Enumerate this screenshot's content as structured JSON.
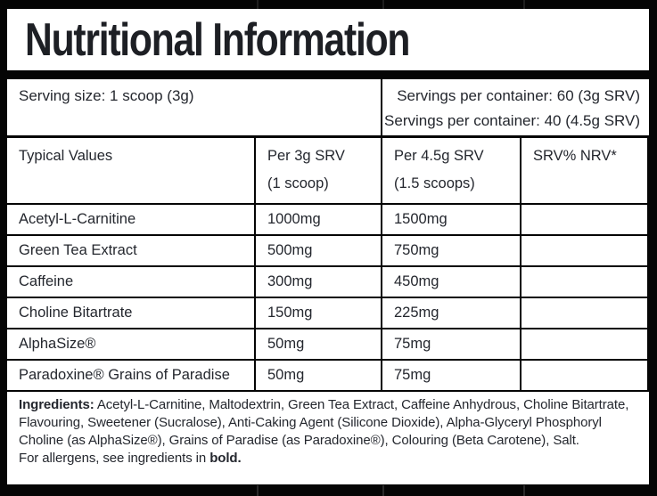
{
  "title": "Nutritional Information",
  "serving": {
    "size": "Serving size: 1 scoop (3g)",
    "per_container_1": "Servings per container: 60 (3g SRV)",
    "per_container_2": "Servings per container: 40 (4.5g SRV)"
  },
  "table": {
    "header": {
      "col1": "Typical Values",
      "col2_line1": "Per 3g SRV",
      "col2_line2": "(1 scoop)",
      "col3_line1": "Per 4.5g SRV",
      "col3_line2": "(1.5 scoops)",
      "col4": "SRV% NRV*"
    },
    "rows": [
      {
        "name": "Acetyl-L-Carnitine",
        "per_3g": "1000mg",
        "per_4_5g": "1500mg",
        "srv_nrv": ""
      },
      {
        "name": "Green Tea Extract",
        "per_3g": "500mg",
        "per_4_5g": "750mg",
        "srv_nrv": ""
      },
      {
        "name": "Caffeine",
        "per_3g": "300mg",
        "per_4_5g": "450mg",
        "srv_nrv": ""
      },
      {
        "name": "Choline Bitartrate",
        "per_3g": "150mg",
        "per_4_5g": "225mg",
        "srv_nrv": ""
      },
      {
        "name": "AlphaSize®",
        "per_3g": "50mg",
        "per_4_5g": "75mg",
        "srv_nrv": ""
      },
      {
        "name": "Paradoxine® Grains of Paradise",
        "per_3g": "50mg",
        "per_4_5g": "75mg",
        "srv_nrv": ""
      }
    ]
  },
  "ingredients": {
    "label": "Ingredients:",
    "text": " Acetyl-L-Carnitine, Maltodextrin, Green Tea Extract, Caffeine Anhydrous, Choline Bitartrate, Flavouring, Sweetener (Sucralose), Anti-Caking Agent (Silicone Dioxide), Alpha-Glyceryl Phosphoryl Choline (as AlphaSize®), Grains of Paradise (as Paradoxine®), Colouring (Beta Carotene), Salt.",
    "allergen_prefix": "For allergens, see ingredients in ",
    "allergen_bold": "bold."
  },
  "colors": {
    "background": "#050505",
    "panel": "#ffffff",
    "text": "#24272e"
  }
}
